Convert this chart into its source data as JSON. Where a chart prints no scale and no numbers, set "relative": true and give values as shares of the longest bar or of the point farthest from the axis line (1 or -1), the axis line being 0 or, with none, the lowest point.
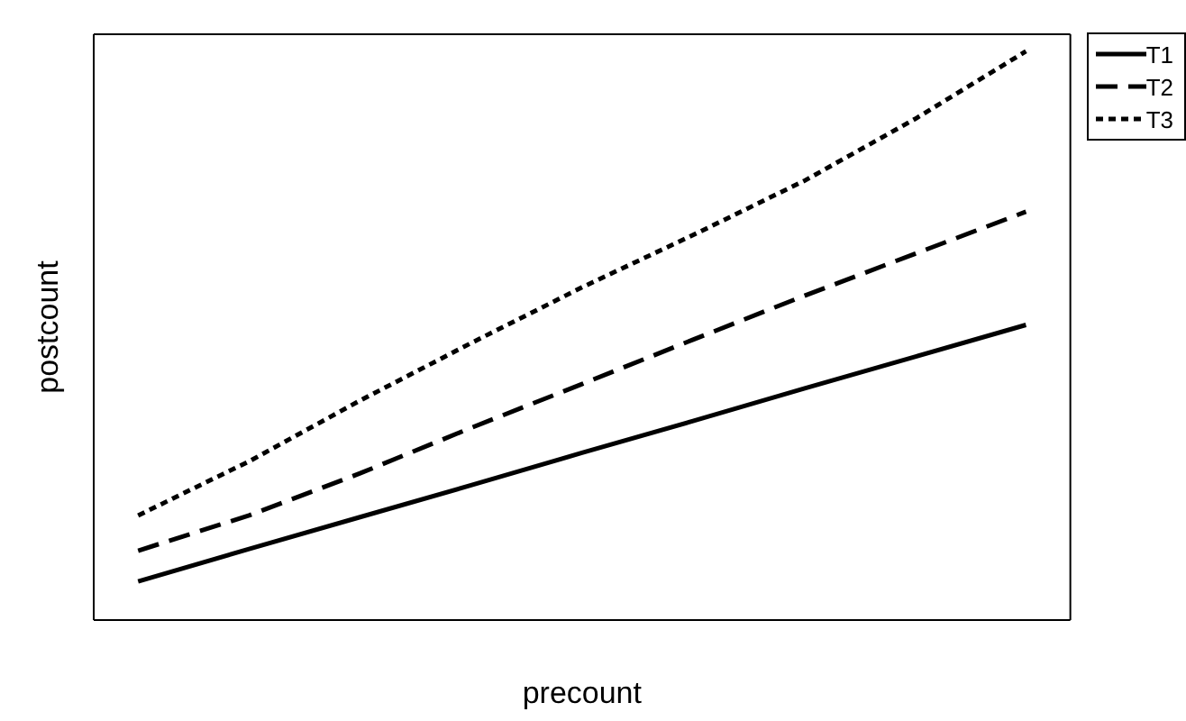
{
  "chart_data": {
    "type": "line",
    "relative": true,
    "xlabel": "precount",
    "ylabel": "postcount",
    "categories": [
      null,
      null,
      null,
      null,
      null,
      null,
      null,
      null,
      null
    ],
    "legend": "top right",
    "marker": "none",
    "grid": false,
    "series": [
      {
        "name": "T1",
        "color": "#000000",
        "line_style": "solid",
        "values": [
          0.068,
          0.125,
          0.181,
          0.237,
          0.294,
          0.35,
          0.407,
          0.463,
          0.519
        ]
      },
      {
        "name": "T2",
        "color": "#000000",
        "line_style": "dashed",
        "values": [
          0.122,
          0.184,
          0.258,
          0.338,
          0.415,
          0.493,
          0.57,
          0.644,
          0.718
        ]
      },
      {
        "name": "T3",
        "color": "#000000",
        "line_style": "dotted",
        "values": [
          0.184,
          0.279,
          0.386,
          0.487,
          0.585,
          0.677,
          0.772,
          0.881,
          1.0
        ]
      }
    ]
  }
}
